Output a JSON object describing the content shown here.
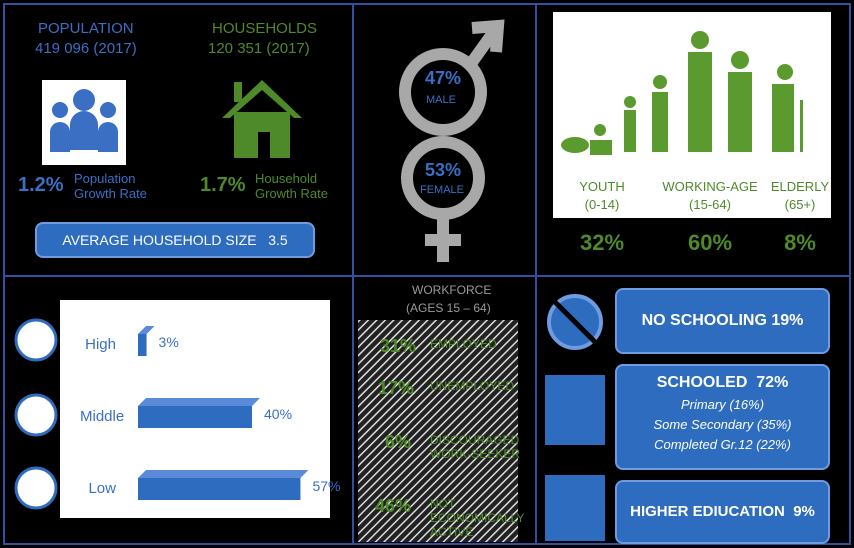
{
  "population": {
    "label": "POPULATION",
    "value": "419 096 (2017)",
    "growth": "1.2%",
    "growth_label": "Population Growth Rate"
  },
  "households": {
    "label": "HOUSEHOLDS",
    "value": "120 351 (2017)",
    "growth": "1.7%",
    "growth_label": "Household Growth Rate"
  },
  "household_size": {
    "label": "AVERAGE HOUSEHOLD SIZE",
    "value": "3.5"
  },
  "gender": {
    "male": {
      "percent": "47%",
      "label": "MALE"
    },
    "female": {
      "percent": "53%",
      "label": "FEMALE"
    }
  },
  "age_groups": [
    {
      "label": "YOUTH",
      "range": "(0-14)",
      "percent": "32%"
    },
    {
      "label": "WORKING-AGE",
      "range": "(15-64)",
      "percent": "60%"
    },
    {
      "label": "ELDERLY",
      "range": "(65+)",
      "percent": "8%"
    }
  ],
  "income": {
    "categories": [
      "High",
      "Middle",
      "Low"
    ],
    "values": [
      3,
      40,
      57
    ],
    "value_labels": [
      "3%",
      "40%",
      "57%"
    ]
  },
  "workforce": {
    "title": "WORKFORCE",
    "subtitle": "(AGES 15 – 64)",
    "groups": [
      {
        "percent": "31%",
        "label": "EMPLOYED"
      },
      {
        "percent": "17%",
        "label": "UNEMPLOYED"
      },
      {
        "percent": "6%",
        "label": "DISCOURAGED WORK-SEEKER"
      },
      {
        "percent": "46%",
        "label": "NOT ECONOMICALLY ACTIVE"
      }
    ]
  },
  "education": [
    {
      "label": "NO SCHOOLING",
      "percent": "19%"
    },
    {
      "label": "SCHOOLED",
      "percent": "72%",
      "details": [
        "Primary (16%)",
        "Some Secondary (35%)",
        "Completed Gr.12 (22%)"
      ]
    },
    {
      "label": "HIGHER EDIUCATION",
      "percent": "9%"
    }
  ]
}
